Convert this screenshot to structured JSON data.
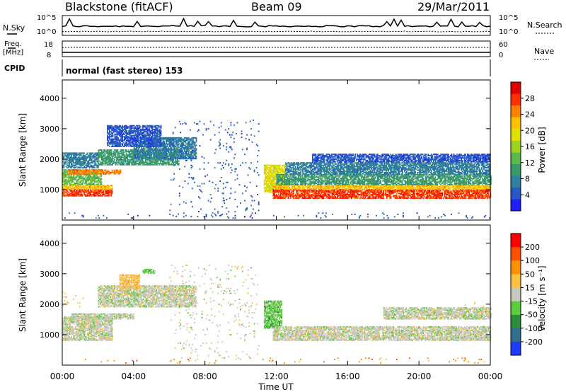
{
  "header": {
    "station": "Blackstone (fitACF)",
    "beam": "Beam 09",
    "date": "29/Mar/2011"
  },
  "top_panels": {
    "nsky_label": "N.Sky",
    "nsky_scale_top": "10^5",
    "nsky_scale_bottom": "10^0",
    "nsearch_label": "N.Search",
    "freq_label_1": "Freq.",
    "freq_label_2": "[MHz]",
    "freq_scale_top": "18",
    "freq_scale_bottom": "8",
    "nave_label": "Nave",
    "nave_scale_top": "60",
    "nave_scale_bottom": "0",
    "cpid_label": "CPID",
    "cpid_text": "normal (fast stereo) 153"
  },
  "chart_data": [
    {
      "type": "heatmap",
      "ylabel": "Slant Range [km]",
      "ylim": [
        0,
        4600
      ],
      "yticks": [
        "1000",
        "2000",
        "3000",
        "4000"
      ],
      "xlim": [
        0,
        24
      ],
      "colorbar": {
        "label": "Power [dB]",
        "ticks": [
          "4",
          "8",
          "12",
          "16",
          "20",
          "24",
          "28"
        ],
        "colors": [
          "#1e1eff",
          "#2858c8",
          "#2f7fa0",
          "#3a9a6a",
          "#5cb84a",
          "#a0d020",
          "#e0e000",
          "#ffc000",
          "#ff8000",
          "#ff3000",
          "#e00000"
        ]
      },
      "bands": [
        {
          "t0": 0.0,
          "t1": 2.8,
          "r0": 780,
          "r1": 1000,
          "level": 9
        },
        {
          "t0": 0.0,
          "t1": 2.8,
          "r0": 1000,
          "r1": 1150,
          "level": 7
        },
        {
          "t0": 0.0,
          "t1": 2.2,
          "r0": 1150,
          "r1": 1650,
          "level": 4
        },
        {
          "t0": 0.3,
          "t1": 3.3,
          "r0": 1500,
          "r1": 1650,
          "level": 8
        },
        {
          "t0": 0.0,
          "t1": 2.0,
          "r0": 1700,
          "r1": 2200,
          "level": 2
        },
        {
          "t0": 2.0,
          "t1": 6.5,
          "r0": 1800,
          "r1": 2300,
          "level": 3
        },
        {
          "t0": 4.0,
          "t1": 7.5,
          "r0": 2000,
          "r1": 2700,
          "level": 2
        },
        {
          "t0": 2.5,
          "t1": 5.5,
          "r0": 2400,
          "r1": 3100,
          "level": 1
        },
        {
          "t0": 11.3,
          "t1": 12.5,
          "r0": 900,
          "r1": 1800,
          "level": 6
        },
        {
          "t0": 11.8,
          "t1": 24.0,
          "r0": 700,
          "r1": 1000,
          "level": 9
        },
        {
          "t0": 11.8,
          "t1": 24.0,
          "r0": 1000,
          "r1": 1150,
          "level": 7
        },
        {
          "t0": 12.0,
          "t1": 24.0,
          "r0": 1150,
          "r1": 1500,
          "level": 3
        },
        {
          "t0": 12.5,
          "t1": 24.0,
          "r0": 1500,
          "r1": 1900,
          "level": 2
        },
        {
          "t0": 14.0,
          "t1": 24.0,
          "r0": 1900,
          "r1": 2150,
          "level": 1
        },
        {
          "t0": 6.0,
          "t1": 11.0,
          "r0": 100,
          "r1": 3300,
          "level": 1,
          "sparse": true
        },
        {
          "t0": 0.0,
          "t1": 24.0,
          "r0": 50,
          "r1": 250,
          "level": 1,
          "sparse": true
        }
      ]
    },
    {
      "type": "heatmap",
      "ylabel": "Slant Range [km]",
      "ylim": [
        0,
        4600
      ],
      "yticks": [
        "1000",
        "2000",
        "3000",
        "4000"
      ],
      "xlim": [
        0,
        24
      ],
      "xlabel": "Time UT",
      "xticks": [
        "00:00",
        "04:00",
        "08:00",
        "12:00",
        "16:00",
        "20:00",
        "00:00"
      ],
      "colorbar": {
        "label": "Velocity [m s⁻¹]",
        "ticks": [
          "200",
          "100",
          "50",
          "15",
          "-15",
          "-50",
          "-100",
          "-200"
        ],
        "colors": [
          "#1e3cff",
          "#2f6f8f",
          "#2c8c3c",
          "#5ccc3c",
          "#c8c8c0",
          "#ffc040",
          "#ff9000",
          "#ff5000",
          "#ff0000"
        ]
      },
      "bands": [
        {
          "t0": 0.0,
          "t1": 2.8,
          "r0": 800,
          "r1": 1600,
          "level": 4
        },
        {
          "t0": 0.5,
          "t1": 4.0,
          "r0": 1500,
          "r1": 1700,
          "level": 4
        },
        {
          "t0": 2.0,
          "t1": 7.5,
          "r0": 1900,
          "r1": 2600,
          "level": 4
        },
        {
          "t0": 3.2,
          "t1": 4.3,
          "r0": 2500,
          "r1": 2950,
          "level": 5
        },
        {
          "t0": 4.5,
          "t1": 5.2,
          "r0": 3000,
          "r1": 3150,
          "level": 3
        },
        {
          "t0": 0.0,
          "t1": 1.5,
          "r0": 1900,
          "r1": 2400,
          "level": 5,
          "sparse": true
        },
        {
          "t0": 11.3,
          "t1": 12.3,
          "r0": 1200,
          "r1": 2100,
          "level": 3
        },
        {
          "t0": 11.8,
          "t1": 24.0,
          "r0": 800,
          "r1": 1250,
          "level": 4
        },
        {
          "t0": 18.0,
          "t1": 24.0,
          "r0": 1500,
          "r1": 1900,
          "level": 4
        },
        {
          "t0": 22.5,
          "t1": 24.0,
          "r0": 1600,
          "r1": 2100,
          "level": 5,
          "sparse": true
        },
        {
          "t0": 6.0,
          "t1": 11.0,
          "r0": 100,
          "r1": 3300,
          "level": 4,
          "sparse": true
        },
        {
          "t0": 0.0,
          "t1": 24.0,
          "r0": 50,
          "r1": 250,
          "level": 6,
          "sparse": true
        }
      ]
    }
  ],
  "time_axis": {
    "xlabel": "Time UT",
    "ticks": [
      "00:00",
      "04:00",
      "08:00",
      "12:00",
      "16:00",
      "20:00",
      "00:00"
    ]
  }
}
